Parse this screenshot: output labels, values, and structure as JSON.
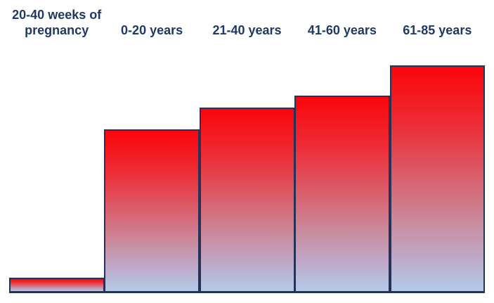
{
  "page": {
    "background": "#ffffff"
  },
  "chart_data": {
    "type": "bar",
    "title": "",
    "xlabel": "",
    "ylabel": "",
    "categories": [
      "20-40 weeks of pregnancy",
      "0-20 years",
      "21-40 years",
      "41-60 years",
      "61-85 years"
    ],
    "label_lines": [
      [
        "20-40 weeks of",
        "pregnancy"
      ],
      [
        "0-20 years"
      ],
      [
        "21-40 years"
      ],
      [
        "41-60 years"
      ],
      [
        "61-85 years"
      ]
    ],
    "values": [
      22,
      233,
      264,
      281,
      324
    ],
    "values_normalized": [
      0.068,
      0.719,
      0.815,
      0.867,
      1.0
    ],
    "values_note": "No numeric axis is shown in the figure; values are relative bar heights (pixels) read from the image.",
    "axes_visible": false,
    "gridlines": false,
    "legend": null,
    "baseline_visible": true,
    "colors": {
      "bar_gradient_top": "#fa060b",
      "bar_gradient_upper_mid": "#ee2b35",
      "bar_gradient_mid": "#d9606e",
      "bar_gradient_lower_mid": "#c98c9f",
      "bar_gradient_lavender": "#bfa8c8",
      "bar_gradient_bottom": "#b3cbe8",
      "bar_border": "#283156",
      "label_text": "#1f3864",
      "background": "#ffffff"
    }
  }
}
